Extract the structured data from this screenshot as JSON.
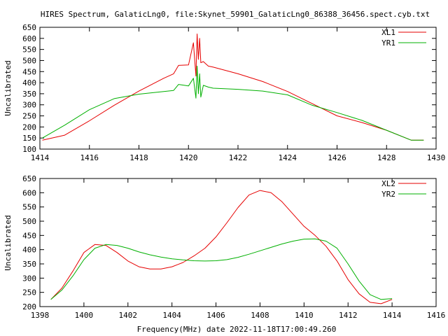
{
  "title": "HIRES Spectrum, GalaticLng0, file:Skynet_59901_GalaticLng0_86388_36456.spect.cyb.txt",
  "xlabel": "Frequency(MHz) date 2022-11-18T17:00:49.260",
  "colors": {
    "red": "#e60000",
    "green": "#00b000",
    "axis": "#000000"
  },
  "chart_data": [
    {
      "type": "line",
      "ylabel": "Uncalibrated",
      "xlim": [
        1414,
        1430
      ],
      "ylim": [
        100,
        650
      ],
      "xticks": [
        "1414",
        "1416",
        "1418",
        "1420",
        "1422",
        "1424",
        "1426",
        "1428",
        "1430"
      ],
      "yticks": [
        "100",
        "150",
        "200",
        "250",
        "300",
        "350",
        "400",
        "450",
        "500",
        "550",
        "600",
        "650"
      ],
      "legend_position": "top-right",
      "series": [
        {
          "name": "XL1",
          "color": "#e60000",
          "x": [
            1414.1,
            1415,
            1416,
            1417,
            1418,
            1419,
            1419.4,
            1419.6,
            1420,
            1420.2,
            1420.3,
            1420.35,
            1420.4,
            1420.45,
            1420.5,
            1420.6,
            1420.8,
            1421,
            1422,
            1423,
            1424,
            1425,
            1426,
            1427,
            1428,
            1429,
            1429.5
          ],
          "y": [
            140,
            163,
            228,
            298,
            362,
            420,
            440,
            478,
            480,
            580,
            430,
            620,
            505,
            600,
            490,
            495,
            475,
            470,
            440,
            405,
            360,
            305,
            250,
            220,
            185,
            140,
            140
          ]
        },
        {
          "name": "YR1",
          "color": "#00b000",
          "x": [
            1414.1,
            1415,
            1416,
            1417,
            1418,
            1419,
            1419.4,
            1419.6,
            1420,
            1420.2,
            1420.3,
            1420.35,
            1420.4,
            1420.45,
            1420.5,
            1420.6,
            1420.8,
            1421,
            1422,
            1423,
            1424,
            1425,
            1426,
            1427,
            1428,
            1429,
            1429.5
          ],
          "y": [
            150,
            208,
            278,
            328,
            348,
            360,
            365,
            392,
            385,
            420,
            330,
            475,
            350,
            440,
            335,
            388,
            380,
            375,
            370,
            362,
            345,
            298,
            265,
            230,
            185,
            140,
            140
          ]
        }
      ]
    },
    {
      "type": "line",
      "ylabel": "Uncalibrated",
      "xlim": [
        1398,
        1416
      ],
      "ylim": [
        200,
        650
      ],
      "xticks": [
        "1398",
        "1400",
        "1402",
        "1404",
        "1406",
        "1408",
        "1410",
        "1412",
        "1414",
        "1416"
      ],
      "yticks": [
        "200",
        "250",
        "300",
        "350",
        "400",
        "450",
        "500",
        "550",
        "600",
        "650"
      ],
      "legend_position": "top-right",
      "series": [
        {
          "name": "XL2",
          "color": "#e60000",
          "x": [
            1398.5,
            1399,
            1399.5,
            1400,
            1400.5,
            1401,
            1401.5,
            1402,
            1402.5,
            1403,
            1403.5,
            1404,
            1404.5,
            1405,
            1405.5,
            1406,
            1406.5,
            1407,
            1407.5,
            1408,
            1408.5,
            1409,
            1409.5,
            1410,
            1410.5,
            1411,
            1411.5,
            1412,
            1412.5,
            1413,
            1413.5,
            1414
          ],
          "y": [
            225,
            265,
            325,
            390,
            418,
            415,
            390,
            360,
            340,
            332,
            332,
            340,
            355,
            378,
            405,
            445,
            495,
            548,
            592,
            608,
            600,
            568,
            525,
            482,
            450,
            412,
            360,
            295,
            245,
            215,
            210,
            225
          ]
        },
        {
          "name": "YR2",
          "color": "#00b000",
          "x": [
            1398.5,
            1399,
            1399.5,
            1400,
            1400.5,
            1401,
            1401.5,
            1402,
            1402.5,
            1403,
            1403.5,
            1404,
            1404.5,
            1405,
            1405.5,
            1406,
            1406.5,
            1407,
            1407.5,
            1408,
            1408.5,
            1409,
            1409.5,
            1410,
            1410.5,
            1411,
            1411.5,
            1412,
            1412.5,
            1413,
            1413.5,
            1414
          ],
          "y": [
            225,
            258,
            308,
            365,
            405,
            418,
            415,
            405,
            392,
            382,
            374,
            368,
            364,
            361,
            360,
            361,
            365,
            373,
            384,
            396,
            408,
            420,
            430,
            437,
            438,
            430,
            405,
            350,
            290,
            242,
            225,
            228
          ]
        }
      ]
    }
  ]
}
